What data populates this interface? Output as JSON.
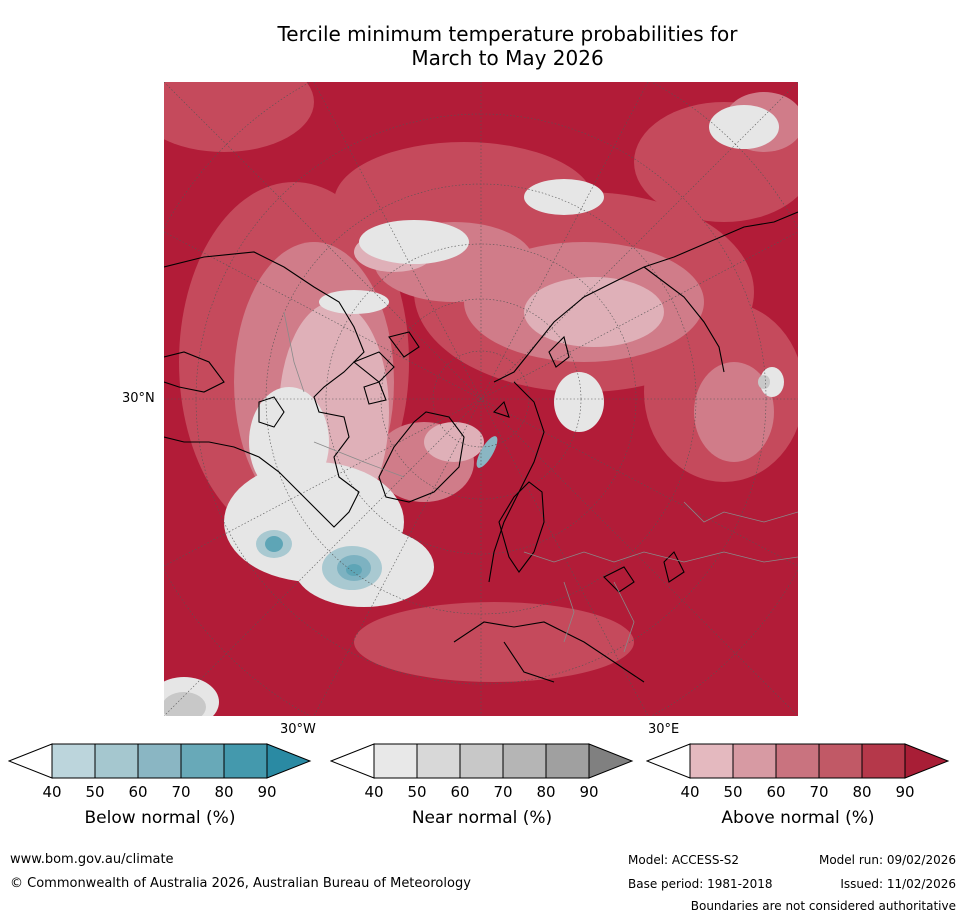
{
  "title_line1": "Tercile minimum temperature probabilities for",
  "title_line2": "March to May 2026",
  "map": {
    "lat_label": "30°N",
    "lon_label_left": "30°W",
    "lon_label_right": "30°E"
  },
  "colorbars": [
    {
      "title": "Below normal (%)",
      "ticks": [
        "40",
        "50",
        "60",
        "70",
        "80",
        "90"
      ],
      "colors": [
        "#ffffff",
        "#bcd5dc",
        "#a5c7cf",
        "#8ab6c3",
        "#68a9b8",
        "#4499ad",
        "#2a8aa3"
      ]
    },
    {
      "title": "Near normal (%)",
      "ticks": [
        "40",
        "50",
        "60",
        "70",
        "80",
        "90"
      ],
      "colors": [
        "#ffffff",
        "#e8e8e8",
        "#d8d8d8",
        "#c8c8c8",
        "#b5b5b5",
        "#a0a0a0",
        "#808080"
      ]
    },
    {
      "title": "Above normal (%)",
      "ticks": [
        "40",
        "50",
        "60",
        "70",
        "80",
        "90"
      ],
      "colors": [
        "#ffffff",
        "#e4b9bf",
        "#d79aa3",
        "#c9737f",
        "#c15966",
        "#b5384a",
        "#a81e36"
      ]
    }
  ],
  "footer": {
    "website": "www.bom.gov.au/climate",
    "copyright": "© Commonwealth of Australia 2026, Australian Bureau of Meteorology",
    "model": "Model: ACCESS-S2",
    "base_period": "Base period: 1981-2018",
    "model_run": "Model run: 09/02/2026",
    "issued": "Issued: 11/02/2026",
    "disclaimer": "Boundaries are not considered authoritative"
  }
}
